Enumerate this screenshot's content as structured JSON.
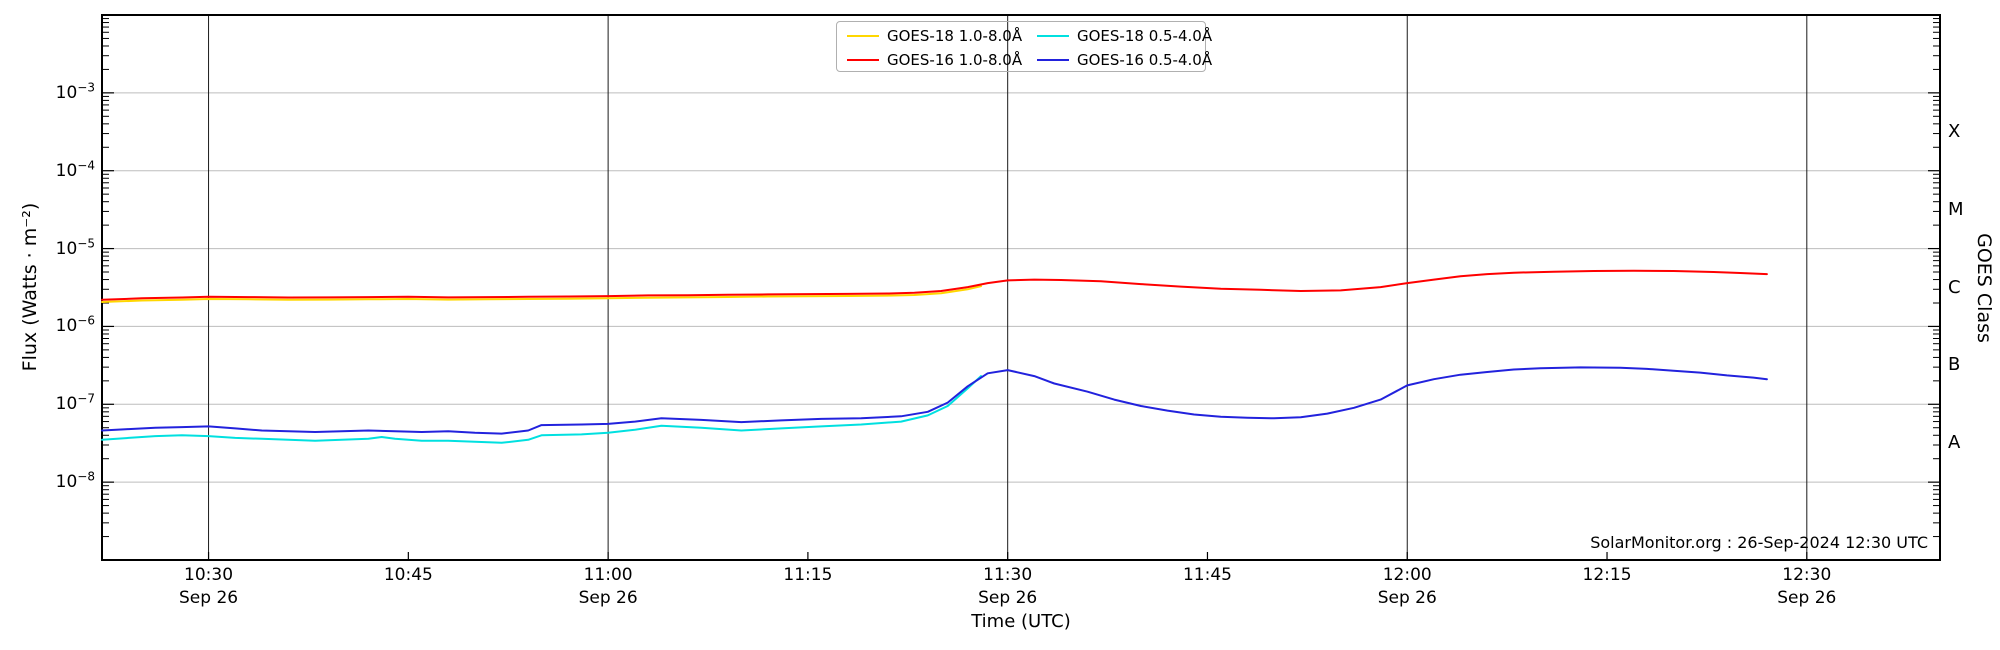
{
  "page": {
    "background": "#ffffff"
  },
  "chart_data": {
    "type": "line",
    "title": "",
    "xlabel": "Time (UTC)",
    "ylabel": "Flux (Watts · m⁻²)",
    "ylabel_right": "GOES Class",
    "annotation": "SolarMonitor.org : 26-Sep-2024 12:30 UTC",
    "x_unit": "minutes after 10:00 UTC on Sep 26, 2024",
    "x_domain": [
      22,
      160
    ],
    "y_domain_exponents": [
      -9,
      -2
    ],
    "ylim": [
      1e-09,
      0.01
    ],
    "grid": {
      "horizontal": "gray lines at each decade",
      "vertical": "black lines at 30-min marks"
    },
    "legend_position": "top-center, 2 columns, transparent background",
    "style": {
      "grid_color": "#bdbdbd",
      "vline_color": "#1a1a1a",
      "axis_color": "#000000"
    },
    "y_ticks_exponents": [
      -3,
      -4,
      -5,
      -6,
      -7,
      -8
    ],
    "x_ticks": [
      {
        "t": 30,
        "label": "10:30",
        "date": "Sep 26",
        "vline": true
      },
      {
        "t": 45,
        "label": "10:45",
        "date": null,
        "vline": false
      },
      {
        "t": 60,
        "label": "11:00",
        "date": "Sep 26",
        "vline": true
      },
      {
        "t": 75,
        "label": "11:15",
        "date": null,
        "vline": false
      },
      {
        "t": 90,
        "label": "11:30",
        "date": "Sep 26",
        "vline": true
      },
      {
        "t": 105,
        "label": "11:45",
        "date": null,
        "vline": false
      },
      {
        "t": 120,
        "label": "12:00",
        "date": "Sep 26",
        "vline": true
      },
      {
        "t": 135,
        "label": "12:15",
        "date": null,
        "vline": false
      },
      {
        "t": 150,
        "label": "12:30",
        "date": "Sep 26",
        "vline": true
      }
    ],
    "goes_classes": [
      {
        "label": "X",
        "exp_center": -3.5
      },
      {
        "label": "M",
        "exp_center": -4.5
      },
      {
        "label": "C",
        "exp_center": -5.5
      },
      {
        "label": "B",
        "exp_center": -6.5
      },
      {
        "label": "A",
        "exp_center": -7.5
      }
    ],
    "draw_order": [
      0,
      2,
      1,
      3
    ],
    "series": [
      {
        "id": "goes18-long",
        "name": "GOES-18 1.0-8.0Å",
        "color": "#ffd700",
        "x": [
          22,
          25,
          28,
          30,
          33,
          36,
          39,
          42,
          45,
          48,
          51,
          54,
          57,
          60,
          63,
          66,
          69,
          72,
          75,
          78,
          81,
          83,
          85,
          87,
          88
        ],
        "y": [
          2.06e-06,
          2.15e-06,
          2.2e-06,
          2.25e-06,
          2.23e-06,
          2.2e-06,
          2.21e-06,
          2.23e-06,
          2.25e-06,
          2.21e-06,
          2.23e-06,
          2.25e-06,
          2.27e-06,
          2.3e-06,
          2.34e-06,
          2.36e-06,
          2.39e-06,
          2.42e-06,
          2.44e-06,
          2.46e-06,
          2.49e-06,
          2.53e-06,
          2.67e-06,
          3e-06,
          3.3e-06
        ]
      },
      {
        "id": "goes16-long",
        "name": "GOES-16 1.0-8.0Å",
        "color": "#ff0000",
        "x": [
          22,
          25,
          28,
          30,
          33,
          36,
          39,
          42,
          45,
          48,
          51,
          54,
          57,
          60,
          63,
          66,
          69,
          72,
          75,
          78,
          81,
          83,
          85,
          87,
          88.5,
          90,
          92,
          94,
          97,
          100,
          103,
          106,
          109,
          112,
          115,
          118,
          120,
          122,
          124,
          126,
          128,
          131,
          134,
          137,
          140,
          143,
          145,
          147
        ],
        "y": [
          2.2e-06,
          2.3e-06,
          2.35e-06,
          2.4e-06,
          2.38e-06,
          2.35e-06,
          2.36e-06,
          2.38e-06,
          2.4e-06,
          2.36e-06,
          2.38e-06,
          2.4e-06,
          2.42e-06,
          2.45e-06,
          2.5e-06,
          2.52e-06,
          2.55e-06,
          2.58e-06,
          2.6e-06,
          2.62e-06,
          2.65e-06,
          2.7e-06,
          2.85e-06,
          3.2e-06,
          3.6e-06,
          3.9e-06,
          4e-06,
          3.95e-06,
          3.8e-06,
          3.5e-06,
          3.25e-06,
          3.05e-06,
          2.95e-06,
          2.85e-06,
          2.9e-06,
          3.2e-06,
          3.6e-06,
          4e-06,
          4.4e-06,
          4.7e-06,
          4.9e-06,
          5.05e-06,
          5.15e-06,
          5.2e-06,
          5.15e-06,
          5e-06,
          4.85e-06,
          4.7e-06
        ]
      },
      {
        "id": "goes18-short",
        "name": "GOES-18 0.5-4.0Å",
        "color": "#00e0e0",
        "x": [
          22,
          24,
          26,
          28,
          30,
          32,
          34,
          36,
          38,
          40,
          42,
          43,
          44,
          46,
          48,
          50,
          52,
          54,
          55,
          58,
          60,
          62,
          64,
          67,
          70,
          73,
          76,
          79,
          82,
          84,
          85.5,
          87,
          88
        ],
        "y": [
          3.5e-08,
          3.7e-08,
          3.9e-08,
          4e-08,
          3.9e-08,
          3.7e-08,
          3.6e-08,
          3.5e-08,
          3.4e-08,
          3.5e-08,
          3.6e-08,
          3.8e-08,
          3.6e-08,
          3.4e-08,
          3.4e-08,
          3.3e-08,
          3.2e-08,
          3.5e-08,
          4e-08,
          4.1e-08,
          4.3e-08,
          4.7e-08,
          5.3e-08,
          5e-08,
          4.6e-08,
          4.9e-08,
          5.2e-08,
          5.5e-08,
          6e-08,
          7.2e-08,
          9.5e-08,
          1.6e-07,
          2.3e-07
        ]
      },
      {
        "id": "goes16-short",
        "name": "GOES-16 0.5-4.0Å",
        "color": "#2222dd",
        "x": [
          22,
          24,
          26,
          28,
          30,
          32,
          34,
          36,
          38,
          40,
          42,
          44,
          46,
          48,
          50,
          52,
          54,
          55,
          58,
          60,
          62,
          64,
          67,
          70,
          73,
          76,
          79,
          82,
          84,
          85.5,
          87,
          88.5,
          90,
          92,
          93.5,
          96,
          98,
          100,
          102,
          104,
          106,
          108,
          110,
          112,
          114,
          116,
          118,
          120,
          122,
          124,
          126,
          128,
          130,
          133,
          136,
          138,
          140,
          142,
          144,
          146,
          147
        ],
        "y": [
          4.6e-08,
          4.8e-08,
          5e-08,
          5.1e-08,
          5.2e-08,
          4.9e-08,
          4.6e-08,
          4.5e-08,
          4.4e-08,
          4.5e-08,
          4.6e-08,
          4.5e-08,
          4.4e-08,
          4.5e-08,
          4.3e-08,
          4.2e-08,
          4.6e-08,
          5.4e-08,
          5.5e-08,
          5.6e-08,
          6e-08,
          6.6e-08,
          6.3e-08,
          5.9e-08,
          6.2e-08,
          6.5e-08,
          6.6e-08,
          7e-08,
          8e-08,
          1.05e-07,
          1.7e-07,
          2.5e-07,
          2.75e-07,
          2.3e-07,
          1.85e-07,
          1.45e-07,
          1.15e-07,
          9.5e-08,
          8.3e-08,
          7.4e-08,
          6.9e-08,
          6.7e-08,
          6.6e-08,
          6.8e-08,
          7.6e-08,
          9e-08,
          1.15e-07,
          1.75e-07,
          2.1e-07,
          2.4e-07,
          2.6e-07,
          2.8e-07,
          2.9e-07,
          2.98e-07,
          2.95e-07,
          2.85e-07,
          2.7e-07,
          2.55e-07,
          2.35e-07,
          2.2e-07,
          2.1e-07
        ]
      }
    ]
  }
}
